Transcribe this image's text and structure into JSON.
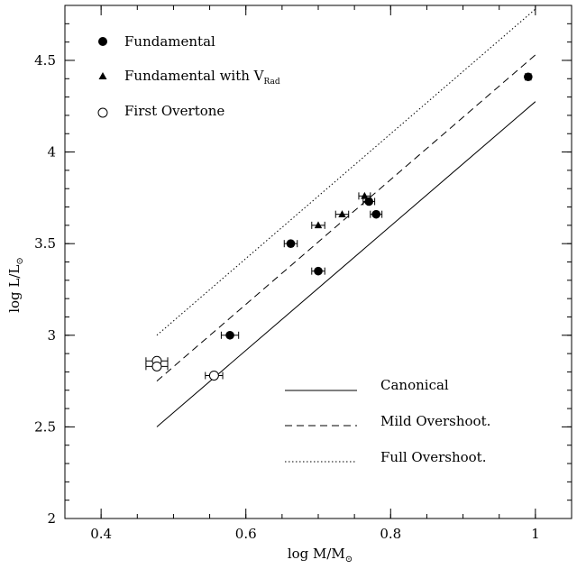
{
  "chart_data": {
    "type": "scatter",
    "title": "",
    "xlabel": {
      "main": "log M/M",
      "sub": "⊙"
    },
    "ylabel": {
      "main": "log L/L",
      "sub": "⊙"
    },
    "xlim": [
      0.35,
      1.05
    ],
    "ylim": [
      2.0,
      4.8
    ],
    "xticks": [
      0.4,
      0.6,
      0.8,
      1.0
    ],
    "xtick_labels": [
      "0.4",
      "0.6",
      "0.8",
      "1"
    ],
    "yticks": [
      2.0,
      2.5,
      3.0,
      3.5,
      4.0,
      4.5
    ],
    "ytick_labels": [
      "2",
      "2.5",
      "3",
      "3.5",
      "4",
      "4.5"
    ],
    "grid": false,
    "legend_position": "top-left",
    "series": [
      {
        "name": "Fundamental",
        "marker": "filled-circle",
        "points": [
          {
            "x": 0.99,
            "y": 4.41,
            "xerr": 0.004
          },
          {
            "x": 0.77,
            "y": 3.73,
            "xerr": 0.008
          },
          {
            "x": 0.78,
            "y": 3.66,
            "xerr": 0.008
          },
          {
            "x": 0.662,
            "y": 3.5,
            "xerr": 0.009
          },
          {
            "x": 0.7,
            "y": 3.35,
            "xerr": 0.009
          },
          {
            "x": 0.578,
            "y": 3.0,
            "xerr": 0.012
          }
        ]
      },
      {
        "name": "Fundamental with V",
        "name_sub": "Rad",
        "marker": "filled-triangle",
        "points": [
          {
            "x": 0.764,
            "y": 3.76,
            "xerr": 0.008
          },
          {
            "x": 0.733,
            "y": 3.66,
            "xerr": 0.009
          },
          {
            "x": 0.7,
            "y": 3.6,
            "xerr": 0.009
          }
        ]
      },
      {
        "name": "First Overtone",
        "marker": "open-circle",
        "points": [
          {
            "x": 0.477,
            "y": 2.86,
            "xerr": 0.015
          },
          {
            "x": 0.477,
            "y": 2.83,
            "xerr": 0.015
          },
          {
            "x": 0.556,
            "y": 2.78,
            "xerr": 0.012
          }
        ]
      }
    ],
    "lines": [
      {
        "name": "Canonical",
        "style": "solid",
        "x": [
          0.477,
          1.0
        ],
        "y": [
          2.5,
          4.275
        ]
      },
      {
        "name": "Mild Overshoot.",
        "style": "dashed",
        "x": [
          0.477,
          1.0
        ],
        "y": [
          2.75,
          4.53
        ]
      },
      {
        "name": "Full Overshoot.",
        "style": "dotted",
        "x": [
          0.477,
          1.0
        ],
        "y": [
          3.0,
          4.78
        ]
      }
    ]
  }
}
